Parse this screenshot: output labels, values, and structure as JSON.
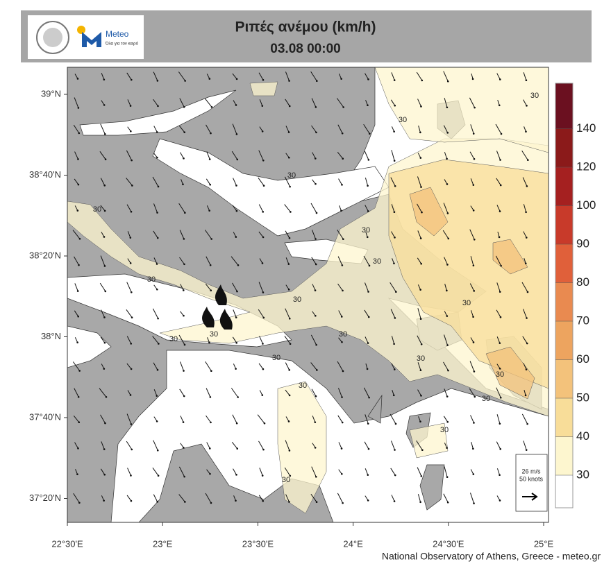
{
  "header": {
    "title": "Ριπές ανέμου (km/h)",
    "date": "03.08 00:00"
  },
  "logo": {
    "name": "Meteo",
    "tagline": "Όλα για τον καιρό"
  },
  "map": {
    "lat_labels": [
      "39°N",
      "38°40'N",
      "38°20'N",
      "38°N",
      "37°40'N",
      "37°20'N"
    ],
    "lon_labels": [
      "22°30'E",
      "23°E",
      "23°30'E",
      "24°E",
      "24°30'E",
      "25°E"
    ],
    "contour_labels": [
      "30",
      "30",
      "30",
      "30",
      "30",
      "30",
      "30",
      "30",
      "30",
      "30",
      "30",
      "30",
      "30",
      "30",
      "30",
      "30",
      "30",
      "30",
      "30"
    ]
  },
  "colorbar": {
    "levels": [
      30,
      40,
      50,
      60,
      70,
      80,
      90,
      100,
      120,
      140
    ],
    "colors": [
      "#ffffff",
      "#fdf6cf",
      "#f8dd99",
      "#f3c27b",
      "#eda45f",
      "#e98a50",
      "#e0603a",
      "#c83a2a",
      "#a52020",
      "#8b1a1a",
      "#6b1020"
    ]
  },
  "reference_vector": {
    "speed": "26 m/s",
    "knots": "50 knots"
  },
  "credit": "National Observatory of Athens, Greece - meteo.gr"
}
